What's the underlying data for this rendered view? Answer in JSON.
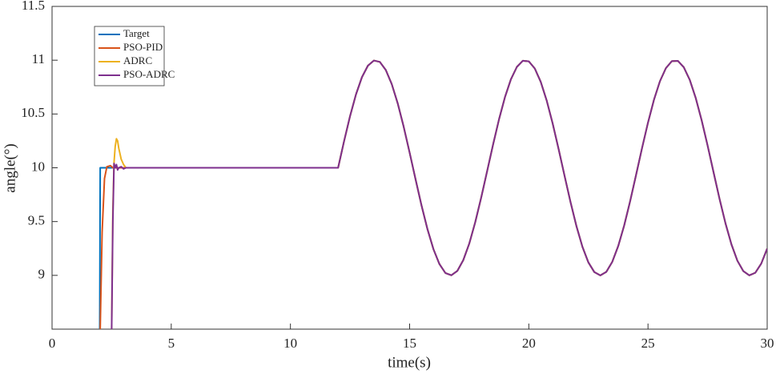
{
  "chart_data": {
    "type": "line",
    "xlabel": "time(s)",
    "ylabel": "angle(°)",
    "xlim": [
      0,
      30
    ],
    "ylim": [
      8.5,
      11.5
    ],
    "xticks": [
      0,
      5,
      10,
      15,
      20,
      25,
      30
    ],
    "yticks": [
      9,
      9.5,
      10,
      10.5,
      11,
      11.5
    ],
    "legend": "upper left",
    "grid": false,
    "x": [
      2,
      2.02,
      2.1,
      2.2,
      2.3,
      2.45,
      2.5,
      2.55,
      2.6,
      2.65,
      2.7,
      2.75,
      2.8,
      2.9,
      3,
      3.1,
      3.3,
      3.6,
      4,
      5,
      6,
      7,
      8,
      9,
      10,
      11,
      12,
      12.25,
      12.5,
      12.75,
      13,
      13.25,
      13.5,
      13.75,
      14,
      14.25,
      14.5,
      14.75,
      15,
      15.25,
      15.5,
      15.75,
      16,
      16.25,
      16.5,
      16.75,
      17,
      17.25,
      17.5,
      17.75,
      18,
      18.25,
      18.5,
      18.75,
      19,
      19.25,
      19.5,
      19.75,
      20,
      20.25,
      20.5,
      20.75,
      21,
      21.25,
      21.5,
      21.75,
      22,
      22.25,
      22.5,
      22.75,
      23,
      23.25,
      23.5,
      23.75,
      24,
      24.25,
      24.5,
      24.75,
      25,
      25.25,
      25.5,
      25.75,
      26,
      26.25,
      26.5,
      26.75,
      27,
      27.25,
      27.5,
      27.75,
      28,
      28.25,
      28.5,
      28.75,
      29,
      29.25,
      29.5,
      29.75,
      30
    ],
    "series": [
      {
        "name": "Target",
        "color": "#0072BD",
        "values": [
          8.5,
          10,
          10,
          10,
          10,
          10,
          10,
          10,
          10,
          10,
          10,
          10,
          10,
          10,
          10,
          10,
          10,
          10,
          10,
          10,
          10,
          10,
          10,
          10,
          10,
          10,
          10,
          10.247,
          10.479,
          10.682,
          10.842,
          10.949,
          10.997,
          10.984,
          10.909,
          10.778,
          10.599,
          10.382,
          10.141,
          9.892,
          9.649,
          9.428,
          9.243,
          9.105,
          9.022,
          9.001,
          9.041,
          9.141,
          9.294,
          9.492,
          9.721,
          9.967,
          10.215,
          10.45,
          10.657,
          10.823,
          10.938,
          10.995,
          10.989,
          10.923,
          10.799,
          10.625,
          10.412,
          10.174,
          9.925,
          9.681,
          9.456,
          9.265,
          9.12,
          9.03,
          9.0,
          9.032,
          9.125,
          9.272,
          9.463,
          9.689,
          9.934,
          10.183,
          10.42,
          10.632,
          10.804,
          10.926,
          10.991,
          10.994,
          10.935,
          10.818,
          10.65,
          10.442,
          10.207,
          9.958,
          9.712,
          9.484,
          9.288,
          9.136,
          9.039,
          9.0,
          9.024,
          9.109,
          9.249
        ]
      },
      {
        "name": "PSO-PID",
        "color": "#D95319",
        "values": [
          null,
          8.5,
          9.4,
          9.9,
          10.01,
          10.02,
          10.01,
          10,
          10,
          10,
          10,
          10,
          10,
          10,
          10,
          10,
          10,
          10,
          10,
          10,
          10,
          10,
          10,
          10,
          10,
          10,
          10,
          10.247,
          10.479,
          10.682,
          10.842,
          10.949,
          10.997,
          10.984,
          10.909,
          10.778,
          10.599,
          10.382,
          10.141,
          9.892,
          9.649,
          9.428,
          9.243,
          9.105,
          9.022,
          9.001,
          9.041,
          9.141,
          9.294,
          9.492,
          9.721,
          9.967,
          10.215,
          10.45,
          10.657,
          10.823,
          10.938,
          10.995,
          10.989,
          10.923,
          10.799,
          10.625,
          10.412,
          10.174,
          9.925,
          9.681,
          9.456,
          9.265,
          9.12,
          9.03,
          9.0,
          9.032,
          9.125,
          9.272,
          9.463,
          9.689,
          9.934,
          10.183,
          10.42,
          10.632,
          10.804,
          10.926,
          10.991,
          10.994,
          10.935,
          10.818,
          10.65,
          10.442,
          10.207,
          9.958,
          9.712,
          9.484,
          9.288,
          9.136,
          9.039,
          9.0,
          9.024,
          9.109,
          9.249
        ]
      },
      {
        "name": "ADRC",
        "color": "#EDB120",
        "values": [
          null,
          null,
          null,
          null,
          null,
          null,
          8.5,
          9.6,
          10.05,
          10.2,
          10.27,
          10.25,
          10.18,
          10.08,
          10.03,
          10,
          10,
          10,
          10,
          10,
          10,
          10,
          10,
          10,
          10,
          10,
          10,
          10.247,
          10.479,
          10.682,
          10.842,
          10.949,
          10.997,
          10.984,
          10.909,
          10.778,
          10.599,
          10.382,
          10.141,
          9.892,
          9.649,
          9.428,
          9.243,
          9.105,
          9.022,
          9.001,
          9.041,
          9.141,
          9.294,
          9.492,
          9.721,
          9.967,
          10.215,
          10.45,
          10.657,
          10.823,
          10.938,
          10.995,
          10.989,
          10.923,
          10.799,
          10.625,
          10.412,
          10.174,
          9.925,
          9.681,
          9.456,
          9.265,
          9.12,
          9.03,
          9.0,
          9.032,
          9.125,
          9.272,
          9.463,
          9.689,
          9.934,
          10.183,
          10.42,
          10.632,
          10.804,
          10.926,
          10.991,
          10.994,
          10.935,
          10.818,
          10.65,
          10.442,
          10.207,
          9.958,
          9.712,
          9.484,
          9.288,
          9.136,
          9.039,
          9.0,
          9.024,
          9.109,
          9.249
        ]
      },
      {
        "name": "PSO-ADRC",
        "color": "#7E2F8E",
        "values": [
          null,
          null,
          null,
          null,
          null,
          null,
          8.5,
          9.5,
          10.04,
          10.0,
          10.03,
          9.98,
          10.0,
          10.01,
          9.99,
          10,
          10,
          10,
          10,
          10,
          10,
          10,
          10,
          10,
          10,
          10,
          10,
          10.247,
          10.479,
          10.682,
          10.842,
          10.949,
          10.997,
          10.984,
          10.909,
          10.778,
          10.599,
          10.382,
          10.141,
          9.892,
          9.649,
          9.428,
          9.243,
          9.105,
          9.022,
          9.001,
          9.041,
          9.141,
          9.294,
          9.492,
          9.721,
          9.967,
          10.215,
          10.45,
          10.657,
          10.823,
          10.938,
          10.995,
          10.989,
          10.923,
          10.799,
          10.625,
          10.412,
          10.174,
          9.925,
          9.681,
          9.456,
          9.265,
          9.12,
          9.03,
          9.0,
          9.032,
          9.125,
          9.272,
          9.463,
          9.689,
          9.934,
          10.183,
          10.42,
          10.632,
          10.804,
          10.926,
          10.991,
          10.994,
          10.935,
          10.818,
          10.65,
          10.442,
          10.207,
          9.958,
          9.712,
          9.484,
          9.288,
          9.136,
          9.039,
          9.0,
          9.024,
          9.109,
          9.249
        ]
      }
    ]
  }
}
